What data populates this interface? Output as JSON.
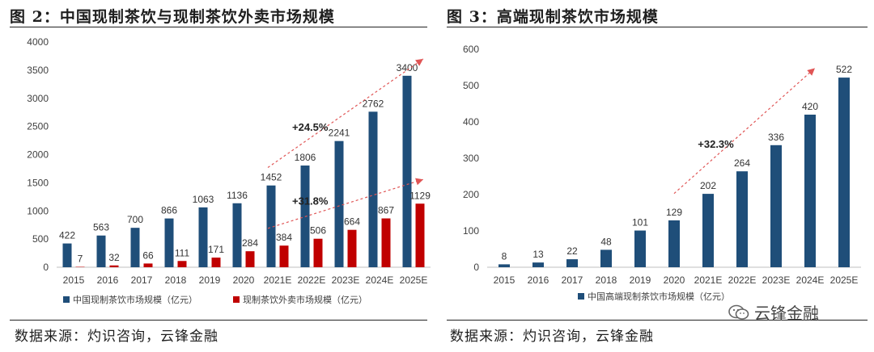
{
  "left": {
    "title": "图 2：中国现制茶饮与现制茶饮外卖市场规模",
    "source": "数据来源：灼识咨询，云锋金融"
  },
  "right": {
    "title": "图 3：高端现制茶饮市场规模",
    "source": "数据来源：灼识咨询，云锋金融"
  },
  "watermark": {
    "text": "云锋金融",
    "icon": "wechat-icon"
  },
  "colors": {
    "navy": "#1f4e79",
    "red": "#c00000",
    "arrow": "#e05555",
    "axis": "#bfbfbf"
  },
  "chart_data": [
    {
      "type": "bar",
      "categories": [
        "2015",
        "2016",
        "2017",
        "2018",
        "2019",
        "2020",
        "2021E",
        "2022E",
        "2023E",
        "2024E",
        "2025E"
      ],
      "ylim": [
        0,
        4000
      ],
      "yticks": [
        0,
        500,
        1000,
        1500,
        2000,
        2500,
        3000,
        3500,
        4000
      ],
      "series": [
        {
          "name": "中国现制茶饮市场规模（亿元）",
          "values": [
            422,
            563,
            700,
            866,
            1063,
            1136,
            1452,
            1806,
            2241,
            2762,
            3400
          ]
        },
        {
          "name": "现制茶饮外卖市场规模（亿元）",
          "values": [
            7,
            32,
            66,
            111,
            171,
            284,
            384,
            506,
            664,
            867,
            1129
          ]
        }
      ],
      "annotations": [
        {
          "text": "+24.5%",
          "from": [
            "2021E",
            1770
          ],
          "to": [
            "2025E",
            3700
          ]
        },
        {
          "text": "+31.8%",
          "from": [
            "2021E",
            690
          ],
          "to": [
            "2025E",
            1560
          ]
        }
      ],
      "legend": "bottom"
    },
    {
      "type": "bar",
      "categories": [
        "2015",
        "2016",
        "2017",
        "2018",
        "2019",
        "2020",
        "2021E",
        "2022E",
        "2023E",
        "2024E",
        "2025E"
      ],
      "ylim": [
        0,
        600
      ],
      "yticks": [
        0,
        100,
        200,
        300,
        400,
        500,
        600
      ],
      "series": [
        {
          "name": "中国高端现制茶饮市场规模（亿元）",
          "values": [
            8,
            13,
            22,
            48,
            101,
            129,
            202,
            264,
            336,
            420,
            522
          ]
        }
      ],
      "annotations": [
        {
          "text": "+32.3%",
          "from": [
            "2020",
            203
          ],
          "to": [
            "2024E",
            548
          ]
        }
      ],
      "legend": "bottom"
    }
  ]
}
